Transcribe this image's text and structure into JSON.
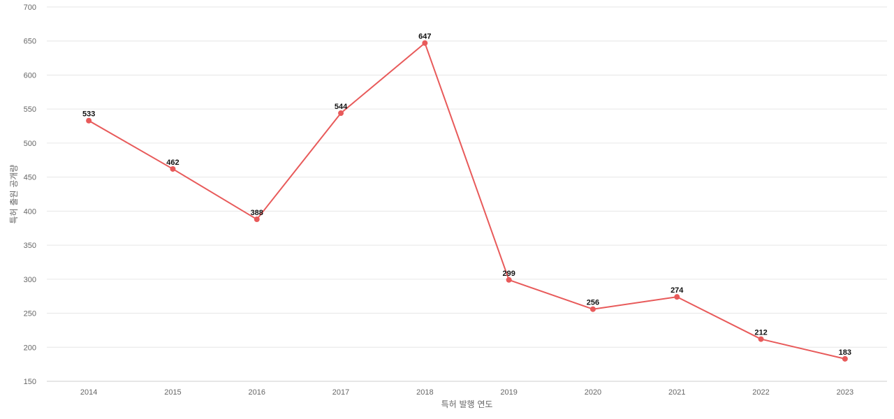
{
  "chart_data": {
    "type": "line",
    "title": "",
    "xlabel": "특허 발행 연도",
    "ylabel": "특허 출원 공개량",
    "categories": [
      "2014",
      "2015",
      "2016",
      "2017",
      "2018",
      "2019",
      "2020",
      "2021",
      "2022",
      "2023"
    ],
    "series": [
      {
        "values": [
          533,
          462,
          388,
          544,
          647,
          299,
          256,
          274,
          212,
          183
        ],
        "color": "#e85a5a"
      }
    ],
    "ylim": [
      150,
      700
    ],
    "yticks": [
      150,
      200,
      250,
      300,
      350,
      400,
      450,
      500,
      550,
      600,
      650,
      700
    ],
    "grid": true,
    "legend": "none",
    "data_labels": true
  }
}
